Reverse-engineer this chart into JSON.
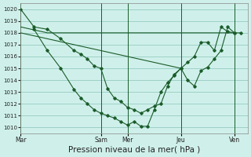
{
  "bg_color": "#cff0ea",
  "grid_color": "#9ecfc7",
  "line_color": "#1a5c2a",
  "marker_color": "#1a5c2a",
  "xlabel": "Pression niveau de la mer( hPa )",
  "xlabel_fontsize": 7.5,
  "yticks": [
    1010,
    1011,
    1012,
    1013,
    1014,
    1015,
    1016,
    1017,
    1018,
    1019,
    1020
  ],
  "ylim": [
    1009.5,
    1020.5
  ],
  "day_labels": [
    "Mar",
    "Sam",
    "Mer",
    "Jeu",
    "Ven"
  ],
  "day_positions": [
    0,
    6,
    8,
    12,
    16
  ],
  "xlim_min": 0,
  "xlim_max": 17,
  "series_measured_x": [
    0,
    1,
    2,
    3,
    4,
    4.5,
    5,
    5.5,
    6,
    6.5,
    7,
    7.5,
    8,
    8.5,
    9,
    9.5,
    10,
    10.5,
    11,
    11.5,
    12,
    12.5,
    13,
    13.5,
    14,
    14.5,
    15,
    15.5,
    16,
    16.5
  ],
  "series_measured_y": [
    1020,
    1018.5,
    1018.3,
    1017.5,
    1016.5,
    1016.2,
    1015.8,
    1015.2,
    1015.0,
    1013.3,
    1012.5,
    1012.2,
    1011.7,
    1011.5,
    1011.2,
    1011.5,
    1011.8,
    1012.0,
    1013.5,
    1014.5,
    1015.0,
    1014.0,
    1013.5,
    1014.8,
    1015.1,
    1015.8,
    1016.5,
    1018.5,
    1018.0,
    1018.0
  ],
  "series_forecast1_x": [
    0,
    2,
    4,
    6,
    8,
    10,
    12,
    14,
    16
  ],
  "series_forecast1_y": [
    1018.5,
    1018.0,
    1018.0,
    1018.0,
    1018.0,
    1018.0,
    1018.0,
    1018.0,
    1018.0
  ],
  "series_forecast2_x": [
    0,
    2,
    4,
    6,
    8,
    10,
    12
  ],
  "series_forecast2_y": [
    1018.0,
    1017.5,
    1017.0,
    1016.5,
    1016.0,
    1015.5,
    1015.0
  ],
  "series_actual_x": [
    1,
    2,
    3,
    4,
    4.5,
    5,
    5.5,
    6,
    6.5,
    7,
    7.5,
    8,
    8.5,
    9,
    9.5,
    10,
    10.5,
    11,
    11.5,
    12,
    12.5,
    13,
    13.5,
    14,
    14.5,
    15,
    15.5,
    16
  ],
  "series_actual_y": [
    1018.3,
    1016.5,
    1015.0,
    1013.2,
    1012.5,
    1012.0,
    1011.5,
    1011.2,
    1011.0,
    1010.8,
    1010.5,
    1010.2,
    1010.5,
    1010.1,
    1010.1,
    1011.5,
    1013.0,
    1013.8,
    1014.4,
    1015.0,
    1015.5,
    1016.0,
    1017.2,
    1017.2,
    1016.5,
    1018.5,
    1018.1,
    1018.0
  ]
}
